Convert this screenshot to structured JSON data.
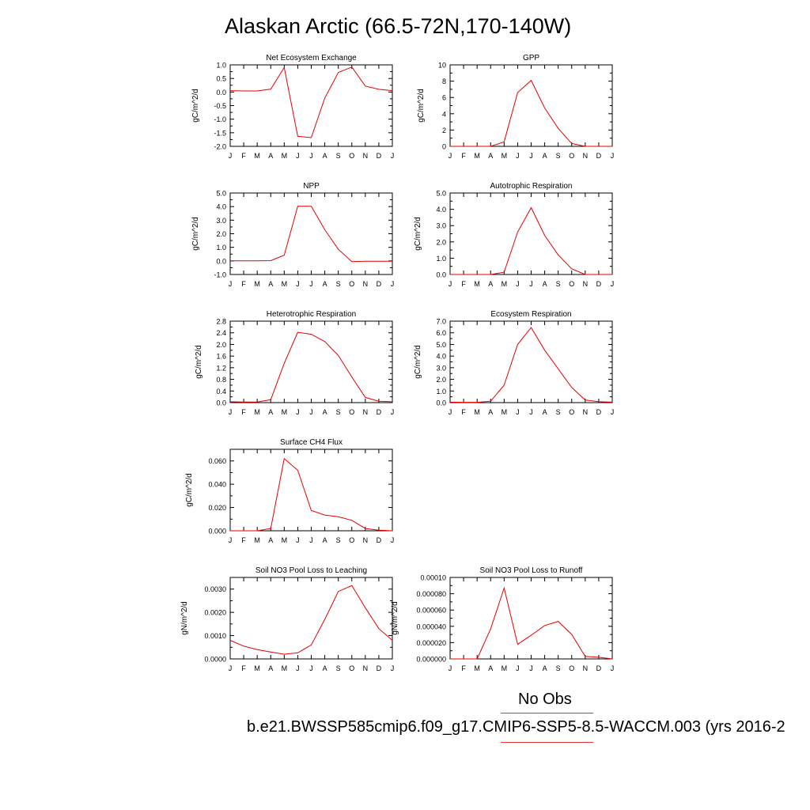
{
  "title": "Alaskan Arctic (66.5-72N,170-140W)",
  "legend": {
    "obs_label": "No Obs",
    "model_label": "b.e21.BWSSP585cmip6.f09_g17.CMIP6-SSP5-8.5-WACCM.003 (yrs 2016-2",
    "model_color": "#e60000",
    "obs_color": "#5555ee"
  },
  "chart_data": [
    {
      "type": "line",
      "title": "Net Ecosystem Exchange",
      "ylabel": "gC/m^2/d",
      "categories": [
        "J",
        "F",
        "M",
        "A",
        "M",
        "J",
        "J",
        "A",
        "S",
        "O",
        "N",
        "D",
        "J"
      ],
      "yticks": [
        "1.0",
        "0.5",
        "0.0",
        "-0.5",
        "-1.0",
        "-1.5",
        "-2.0"
      ],
      "ylim": [
        -2.0,
        1.0
      ],
      "values": [
        0.05,
        0.04,
        0.04,
        0.11,
        0.9,
        -1.63,
        -1.68,
        -0.22,
        0.72,
        0.92,
        0.22,
        0.1,
        0.05
      ]
    },
    {
      "type": "line",
      "title": "GPP",
      "ylabel": "gC/m^2/d",
      "categories": [
        "J",
        "F",
        "M",
        "A",
        "M",
        "J",
        "J",
        "A",
        "S",
        "O",
        "N",
        "D",
        "J"
      ],
      "yticks": [
        "10",
        "8",
        "6",
        "4",
        "2",
        "0"
      ],
      "ylim": [
        0,
        10
      ],
      "values": [
        0.0,
        0.0,
        0.0,
        0.0,
        0.55,
        6.6,
        8.1,
        4.7,
        2.2,
        0.35,
        0.0,
        0.0,
        0.0
      ]
    },
    {
      "type": "line",
      "title": "NPP",
      "ylabel": "gC/m^2/d",
      "categories": [
        "J",
        "F",
        "M",
        "A",
        "M",
        "J",
        "J",
        "A",
        "S",
        "O",
        "N",
        "D",
        "J"
      ],
      "yticks": [
        "5.0",
        "4.0",
        "3.0",
        "2.0",
        "1.0",
        "0.0",
        "-1.0"
      ],
      "ylim": [
        -1.0,
        5.0
      ],
      "values": [
        0.0,
        0.0,
        0.0,
        0.02,
        0.42,
        4.03,
        4.02,
        2.3,
        0.85,
        -0.05,
        -0.03,
        -0.03,
        -0.03
      ]
    },
    {
      "type": "line",
      "title": "Autotrophic Respiration",
      "ylabel": "gC/m^2/d",
      "categories": [
        "J",
        "F",
        "M",
        "A",
        "M",
        "J",
        "J",
        "A",
        "S",
        "O",
        "N",
        "D",
        "J"
      ],
      "yticks": [
        "5.0",
        "4.0",
        "3.0",
        "2.0",
        "1.0",
        "0.0"
      ],
      "ylim": [
        0,
        5.0
      ],
      "values": [
        0.0,
        0.0,
        0.0,
        0.0,
        0.14,
        2.6,
        4.1,
        2.4,
        1.2,
        0.35,
        0.0,
        0.0,
        0.0
      ]
    },
    {
      "type": "line",
      "title": "Heterotrophic Respiration",
      "ylabel": "gC/m^2/d",
      "categories": [
        "J",
        "F",
        "M",
        "A",
        "M",
        "J",
        "J",
        "A",
        "S",
        "O",
        "N",
        "D",
        "J"
      ],
      "yticks": [
        "2.8",
        "2.4",
        "2.0",
        "1.6",
        "1.2",
        "0.8",
        "0.4",
        "0.0"
      ],
      "ylim": [
        0,
        2.8
      ],
      "values": [
        0.03,
        0.02,
        0.02,
        0.1,
        1.35,
        2.42,
        2.35,
        2.1,
        1.62,
        0.88,
        0.18,
        0.05,
        0.03
      ]
    },
    {
      "type": "line",
      "title": "Ecosystem Respiration",
      "ylabel": "gC/m^2/d",
      "categories": [
        "J",
        "F",
        "M",
        "A",
        "M",
        "J",
        "J",
        "A",
        "S",
        "O",
        "N",
        "D",
        "J"
      ],
      "yticks": [
        "7.0",
        "6.0",
        "5.0",
        "4.0",
        "3.0",
        "2.0",
        "1.0",
        "0.0"
      ],
      "ylim": [
        0,
        7.0
      ],
      "values": [
        0.04,
        0.03,
        0.03,
        0.12,
        1.5,
        5.0,
        6.45,
        4.5,
        2.9,
        1.3,
        0.22,
        0.08,
        0.04
      ]
    },
    {
      "type": "line",
      "title": "Surface CH4 Flux",
      "ylabel": "gC/m^2/d",
      "categories": [
        "J",
        "F",
        "M",
        "A",
        "M",
        "J",
        "J",
        "A",
        "S",
        "O",
        "N",
        "D",
        "J"
      ],
      "yticks": [
        "0.060",
        "0.040",
        "0.020",
        "0.000"
      ],
      "ylim": [
        0,
        0.07
      ],
      "values": [
        0.0,
        0.0,
        0.0,
        0.002,
        0.062,
        0.052,
        0.0175,
        0.0135,
        0.012,
        0.009,
        0.002,
        0.0005,
        0.0
      ]
    },
    {
      "type": "line",
      "title": "Soil NO3 Pool Loss to Leaching",
      "ylabel": "gN/m^2/d",
      "categories": [
        "J",
        "F",
        "M",
        "A",
        "M",
        "J",
        "J",
        "A",
        "S",
        "O",
        "N",
        "D",
        "J"
      ],
      "yticks": [
        "0.0030",
        "0.0020",
        "0.0010",
        "0.0000"
      ],
      "ylim": [
        0,
        0.0035
      ],
      "values": [
        0.0008,
        0.00055,
        0.0004,
        0.0003,
        0.0002,
        0.00026,
        0.0006,
        0.0017,
        0.0029,
        0.00315,
        0.0022,
        0.0013,
        0.0008
      ]
    },
    {
      "type": "line",
      "title": "Soil NO3 Pool Loss to Runoff",
      "ylabel": "gN/m^2/d",
      "categories": [
        "J",
        "F",
        "M",
        "A",
        "M",
        "J",
        "J",
        "A",
        "S",
        "O",
        "N",
        "D",
        "J"
      ],
      "yticks": [
        "0.00010",
        "0.000080",
        "0.000060",
        "0.000040",
        "0.000020",
        "0.000000"
      ],
      "ylim": [
        0,
        0.0001
      ],
      "values": [
        0.0,
        0.0,
        0.0,
        3.7e-05,
        8.7e-05,
        1.8e-05,
        2.9e-05,
        4.1e-05,
        4.6e-05,
        3e-05,
        3e-06,
        2e-06,
        0.0
      ]
    }
  ]
}
